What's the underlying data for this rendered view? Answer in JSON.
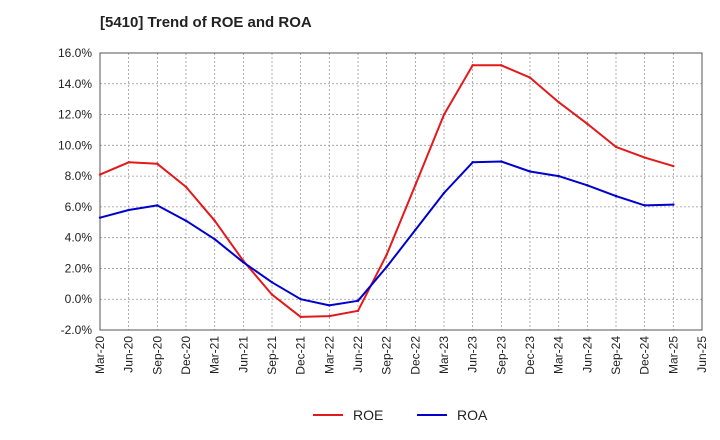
{
  "chart_data": {
    "type": "line",
    "title": "[5410]  Trend of ROE and ROA",
    "xlabel": "",
    "ylabel": "",
    "categories": [
      "Mar-20",
      "Jun-20",
      "Sep-20",
      "Dec-20",
      "Mar-21",
      "Jun-21",
      "Sep-21",
      "Dec-21",
      "Mar-22",
      "Jun-22",
      "Sep-22",
      "Dec-22",
      "Mar-23",
      "Jun-23",
      "Sep-23",
      "Dec-23",
      "Mar-24",
      "Jun-24",
      "Sep-24",
      "Dec-24",
      "Mar-25",
      "Jun-25"
    ],
    "y_ticks": [
      "-2.0%",
      "0.0%",
      "2.0%",
      "4.0%",
      "6.0%",
      "8.0%",
      "10.0%",
      "12.0%",
      "14.0%",
      "16.0%"
    ],
    "ylim": [
      -2,
      16
    ],
    "y_tick_step": 2,
    "grid": true,
    "legend_position": "bottom",
    "series": [
      {
        "name": "ROE",
        "color": "#e31a1c",
        "values": [
          8.1,
          8.9,
          8.8,
          7.3,
          5.1,
          2.5,
          0.3,
          -1.15,
          -1.1,
          -0.75,
          2.9,
          7.4,
          12.0,
          15.2,
          15.2,
          14.4,
          12.8,
          11.4,
          9.9,
          9.2,
          8.65,
          null
        ]
      },
      {
        "name": "ROA",
        "color": "#0000cc",
        "values": [
          5.3,
          5.8,
          6.1,
          5.1,
          3.9,
          2.4,
          1.1,
          0.0,
          -0.4,
          -0.1,
          2.1,
          4.5,
          6.9,
          8.9,
          8.95,
          8.3,
          8.0,
          7.4,
          6.7,
          6.1,
          6.15,
          null
        ]
      }
    ]
  }
}
